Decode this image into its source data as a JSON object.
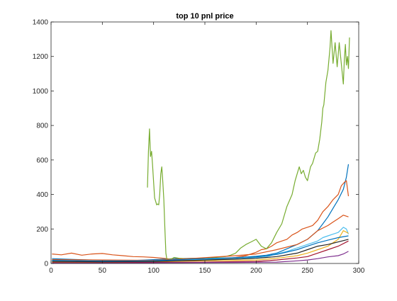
{
  "chart_data": {
    "type": "line",
    "title": "top 10 pnl price",
    "xlabel": "",
    "ylabel": "",
    "xlim": [
      0,
      300
    ],
    "ylim": [
      0,
      1400
    ],
    "xticks": [
      0,
      50,
      100,
      150,
      200,
      250,
      300
    ],
    "yticks": [
      0,
      200,
      400,
      600,
      800,
      1000,
      1200,
      1400
    ],
    "grid": false,
    "legend": "none",
    "series": [
      {
        "color": "#0072BD",
        "points": [
          [
            1,
            28
          ],
          [
            20,
            24
          ],
          [
            40,
            20
          ],
          [
            60,
            18
          ],
          [
            80,
            17
          ],
          [
            100,
            22
          ],
          [
            120,
            28
          ],
          [
            140,
            30
          ],
          [
            160,
            28
          ],
          [
            180,
            33
          ],
          [
            200,
            42
          ],
          [
            210,
            48
          ],
          [
            220,
            60
          ],
          [
            230,
            85
          ],
          [
            240,
            110
          ],
          [
            250,
            140
          ],
          [
            260,
            190
          ],
          [
            265,
            230
          ],
          [
            270,
            270
          ],
          [
            275,
            320
          ],
          [
            280,
            370
          ],
          [
            285,
            430
          ],
          [
            288,
            500
          ],
          [
            290,
            575
          ]
        ]
      },
      {
        "color": "#D95319",
        "points": [
          [
            1,
            55
          ],
          [
            10,
            50
          ],
          [
            20,
            60
          ],
          [
            30,
            48
          ],
          [
            40,
            55
          ],
          [
            50,
            58
          ],
          [
            60,
            50
          ],
          [
            70,
            45
          ],
          [
            80,
            40
          ],
          [
            90,
            38
          ],
          [
            100,
            35
          ],
          [
            110,
            30
          ],
          [
            120,
            22
          ],
          [
            130,
            18
          ],
          [
            140,
            20
          ],
          [
            150,
            25
          ],
          [
            160,
            22
          ],
          [
            170,
            28
          ],
          [
            180,
            35
          ],
          [
            190,
            45
          ],
          [
            200,
            65
          ],
          [
            205,
            80
          ],
          [
            210,
            85
          ],
          [
            215,
            100
          ],
          [
            220,
            120
          ],
          [
            225,
            130
          ],
          [
            230,
            140
          ],
          [
            235,
            165
          ],
          [
            240,
            180
          ],
          [
            245,
            200
          ],
          [
            250,
            210
          ],
          [
            255,
            220
          ],
          [
            260,
            250
          ],
          [
            265,
            300
          ],
          [
            270,
            330
          ],
          [
            275,
            370
          ],
          [
            280,
            400
          ],
          [
            283,
            450
          ],
          [
            286,
            470
          ],
          [
            288,
            480
          ],
          [
            290,
            390
          ]
        ]
      },
      {
        "color": "#77AC30",
        "points": [
          [
            94,
            440
          ],
          [
            95,
            650
          ],
          [
            96,
            780
          ],
          [
            97,
            620
          ],
          [
            98,
            650
          ],
          [
            99,
            570
          ],
          [
            100,
            470
          ],
          [
            101,
            380
          ],
          [
            102,
            360
          ],
          [
            103,
            340
          ],
          [
            104,
            345
          ],
          [
            105,
            340
          ],
          [
            106,
            400
          ],
          [
            107,
            520
          ],
          [
            108,
            560
          ],
          [
            109,
            470
          ],
          [
            110,
            370
          ],
          [
            111,
            200
          ],
          [
            112,
            60
          ],
          [
            113,
            20
          ],
          [
            115,
            25
          ],
          [
            118,
            28
          ],
          [
            120,
            35
          ],
          [
            125,
            30
          ],
          [
            130,
            28
          ],
          [
            140,
            30
          ],
          [
            150,
            28
          ],
          [
            160,
            35
          ],
          [
            170,
            40
          ],
          [
            175,
            48
          ],
          [
            180,
            60
          ],
          [
            185,
            90
          ],
          [
            190,
            110
          ],
          [
            195,
            125
          ],
          [
            200,
            140
          ],
          [
            205,
            100
          ],
          [
            210,
            85
          ],
          [
            215,
            120
          ],
          [
            220,
            180
          ],
          [
            225,
            230
          ],
          [
            230,
            330
          ],
          [
            235,
            400
          ],
          [
            238,
            480
          ],
          [
            240,
            520
          ],
          [
            242,
            560
          ],
          [
            244,
            520
          ],
          [
            246,
            540
          ],
          [
            248,
            500
          ],
          [
            250,
            480
          ],
          [
            253,
            560
          ],
          [
            255,
            580
          ],
          [
            258,
            640
          ],
          [
            260,
            650
          ],
          [
            262,
            720
          ],
          [
            264,
            820
          ],
          [
            265,
            900
          ],
          [
            266,
            920
          ],
          [
            268,
            1050
          ],
          [
            270,
            1120
          ],
          [
            272,
            1250
          ],
          [
            273,
            1350
          ],
          [
            275,
            1160
          ],
          [
            277,
            1280
          ],
          [
            279,
            1140
          ],
          [
            281,
            1280
          ],
          [
            283,
            1160
          ],
          [
            285,
            1040
          ],
          [
            286,
            1180
          ],
          [
            287,
            1270
          ],
          [
            288,
            1150
          ],
          [
            289,
            1200
          ],
          [
            290,
            1130
          ],
          [
            291,
            1310
          ]
        ]
      },
      {
        "color": "#4DBEEE",
        "points": [
          [
            1,
            18
          ],
          [
            30,
            15
          ],
          [
            60,
            12
          ],
          [
            90,
            14
          ],
          [
            120,
            20
          ],
          [
            150,
            24
          ],
          [
            180,
            28
          ],
          [
            200,
            35
          ],
          [
            210,
            40
          ],
          [
            220,
            55
          ],
          [
            230,
            70
          ],
          [
            240,
            90
          ],
          [
            250,
            110
          ],
          [
            260,
            130
          ],
          [
            265,
            150
          ],
          [
            270,
            160
          ],
          [
            275,
            170
          ],
          [
            280,
            180
          ],
          [
            285,
            210
          ],
          [
            288,
            200
          ],
          [
            290,
            170
          ]
        ]
      },
      {
        "color": "#EDB120",
        "points": [
          [
            1,
            8
          ],
          [
            40,
            6
          ],
          [
            80,
            8
          ],
          [
            120,
            12
          ],
          [
            150,
            15
          ],
          [
            180,
            18
          ],
          [
            200,
            20
          ],
          [
            220,
            30
          ],
          [
            240,
            45
          ],
          [
            250,
            60
          ],
          [
            260,
            80
          ],
          [
            270,
            100
          ],
          [
            275,
            120
          ],
          [
            280,
            140
          ],
          [
            285,
            190
          ],
          [
            290,
            175
          ]
        ]
      },
      {
        "color": "#A2142F",
        "points": [
          [
            1,
            5
          ],
          [
            50,
            4
          ],
          [
            100,
            6
          ],
          [
            150,
            8
          ],
          [
            200,
            12
          ],
          [
            220,
            20
          ],
          [
            240,
            32
          ],
          [
            250,
            40
          ],
          [
            260,
            60
          ],
          [
            270,
            80
          ],
          [
            280,
            100
          ],
          [
            290,
            130
          ]
        ]
      },
      {
        "color": "#7E2F8E",
        "points": [
          [
            1,
            2
          ],
          [
            60,
            2
          ],
          [
            120,
            4
          ],
          [
            180,
            6
          ],
          [
            220,
            8
          ],
          [
            240,
            15
          ],
          [
            250,
            20
          ],
          [
            260,
            28
          ],
          [
            270,
            38
          ],
          [
            280,
            45
          ],
          [
            285,
            55
          ],
          [
            290,
            70
          ]
        ]
      },
      {
        "color": "#222222",
        "points": [
          [
            1,
            12
          ],
          [
            50,
            10
          ],
          [
            100,
            12
          ],
          [
            140,
            18
          ],
          [
            180,
            25
          ],
          [
            200,
            30
          ],
          [
            220,
            40
          ],
          [
            240,
            60
          ],
          [
            250,
            80
          ],
          [
            260,
            100
          ],
          [
            270,
            110
          ],
          [
            280,
            125
          ],
          [
            290,
            140
          ]
        ]
      },
      {
        "color": "#D95319",
        "points": [
          [
            1,
            22
          ],
          [
            50,
            20
          ],
          [
            100,
            18
          ],
          [
            140,
            30
          ],
          [
            180,
            45
          ],
          [
            200,
            55
          ],
          [
            220,
            80
          ],
          [
            240,
            110
          ],
          [
            250,
            140
          ],
          [
            260,
            190
          ],
          [
            270,
            220
          ],
          [
            275,
            240
          ],
          [
            280,
            260
          ],
          [
            285,
            280
          ],
          [
            290,
            270
          ]
        ]
      },
      {
        "color": "#0072BD",
        "points": [
          [
            1,
            18
          ],
          [
            50,
            14
          ],
          [
            100,
            16
          ],
          [
            140,
            26
          ],
          [
            180,
            34
          ],
          [
            200,
            38
          ],
          [
            220,
            52
          ],
          [
            240,
            80
          ],
          [
            250,
            100
          ],
          [
            260,
            120
          ],
          [
            270,
            135
          ],
          [
            280,
            150
          ],
          [
            290,
            160
          ]
        ]
      }
    ]
  }
}
